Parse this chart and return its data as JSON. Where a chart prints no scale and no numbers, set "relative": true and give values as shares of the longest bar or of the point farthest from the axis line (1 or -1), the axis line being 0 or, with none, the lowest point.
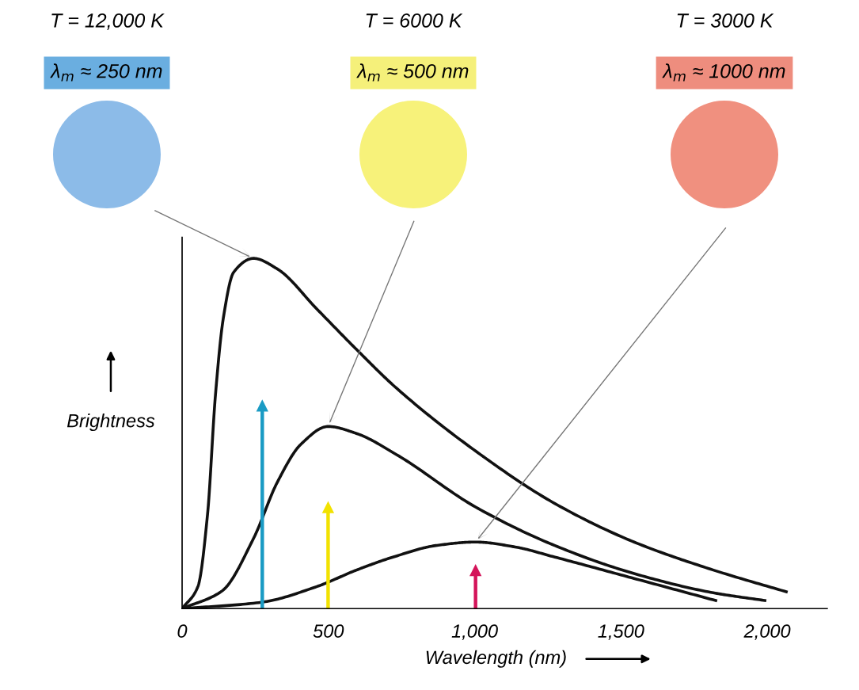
{
  "chart_data": {
    "type": "line",
    "relative": true,
    "xlabel": "Wavelength (nm)",
    "ylabel": "Brightness",
    "xlim": [
      0,
      2205
    ],
    "xticks": [
      0,
      500,
      {
        "value": 1000,
        "label": "1,000"
      },
      {
        "value": 1500,
        "label": "1,500"
      },
      {
        "value": 2000,
        "label": "2,000"
      }
    ],
    "grid": false,
    "legend": false,
    "marker": "none",
    "line_style": "solid",
    "series": [
      {
        "color": "#111111",
        "x": [
          0,
          54,
          87,
          114,
          141,
          176,
          244,
          325,
          461,
          596,
          732,
          1003,
          1274,
          1545,
          1816,
          2065
        ],
        "values": [
          0,
          0.063,
          0.27,
          0.61,
          0.83,
          0.96,
          1.0,
          0.97,
          0.855,
          0.74,
          0.63,
          0.45,
          0.3,
          0.19,
          0.11,
          0.048
        ]
      },
      {
        "color": "#111111",
        "x": [
          0,
          136,
          244,
          325,
          407,
          499,
          596,
          732,
          1003,
          1274,
          1545,
          1816,
          1992
        ],
        "values": [
          0,
          0.05,
          0.2,
          0.36,
          0.47,
          0.52,
          0.5,
          0.44,
          0.29,
          0.18,
          0.1,
          0.045,
          0.023
        ]
      },
      {
        "color": "#111111",
        "x": [
          0,
          271,
          461,
          596,
          732,
          867,
          1003,
          1138,
          1274,
          1545,
          1824
        ],
        "values": [
          0,
          0.018,
          0.063,
          0.11,
          0.15,
          0.18,
          0.19,
          0.176,
          0.147,
          0.086,
          0.023
        ]
      },
      {
        "marker": "triangle",
        "color": "#1a9bc4",
        "x": [
          274,
          274
        ],
        "values": [
          0,
          0.58
        ]
      },
      {
        "marker": "triangle",
        "color": "#f2e200",
        "x": [
          499,
          499
        ],
        "values": [
          0,
          0.29
        ]
      },
      {
        "marker": "triangle",
        "color": "#d4145a",
        "x": [
          1003,
          1003
        ],
        "values": [
          0,
          0.11
        ]
      }
    ],
    "annotations": [
      "T = 12,000 K",
      "T = 6000 K",
      "T = 3000 K",
      "λ$_{m}$ ≈ 250 nm",
      "λ$_{m}$ ≈ 500 nm",
      "λ$_{m}$ ≈ 1000 nm"
    ]
  }
}
